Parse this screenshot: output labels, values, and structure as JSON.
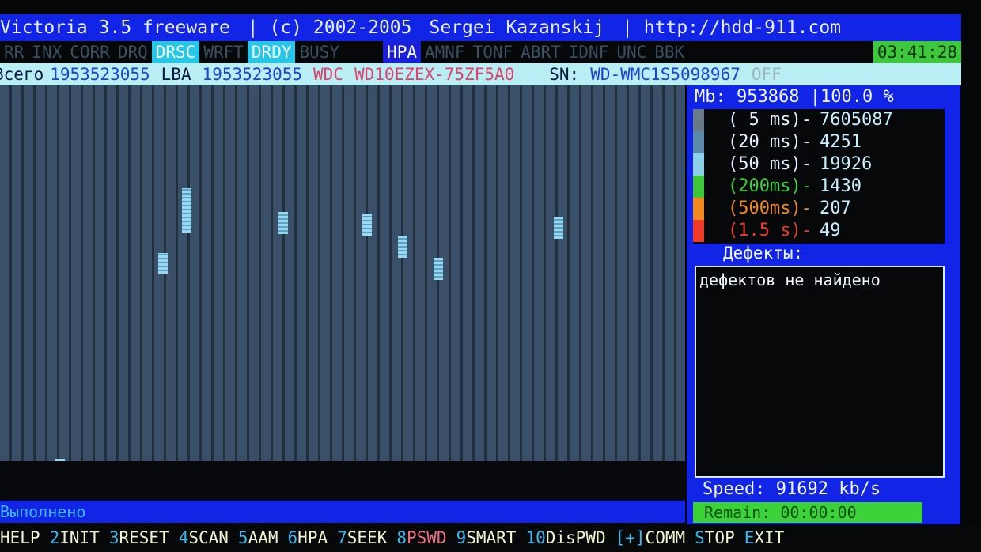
{
  "title": {
    "app": "Victoria 3.5 freeware",
    "copyright": "|  (c) 2002-2005",
    "author": "Sergei Kazanskij",
    "url": "| http://hdd-911.com"
  },
  "flags": {
    "items": [
      {
        "label": "RR",
        "on": false
      },
      {
        "label": "INX",
        "on": false
      },
      {
        "label": "CORR",
        "on": false
      },
      {
        "label": "DRQ",
        "on": false
      },
      {
        "label": "DRSC",
        "on": true
      },
      {
        "label": "WRFT",
        "on": false
      },
      {
        "label": "DRDY",
        "on": true
      },
      {
        "label": "BUSY",
        "on": false
      }
    ],
    "hpa": "HPA",
    "errors": [
      "AMNF",
      "TONF",
      "ABRT",
      "IDNF",
      "UNC",
      "BBK"
    ],
    "clock": "03:41:28"
  },
  "info": {
    "total_label": "Всего",
    "total": "1953523055",
    "lba_label": "LBA",
    "lba": "1953523055",
    "vendor": "WDC",
    "model": "WD10EZEX-75ZF5A0",
    "sn_label": "SN:",
    "sn": "WD-WMC1S5098967",
    "state": "OFF"
  },
  "panel": {
    "mb_label": "Mb:",
    "mb": "953868",
    "percent": "|100.0 %",
    "timings": [
      {
        "label": "( 5 ms)-",
        "count": "7605087",
        "color": "#6a7a88"
      },
      {
        "label": "(20 ms)-",
        "count": "4251",
        "color": "#5a8aa8"
      },
      {
        "label": "(50 ms)-",
        "count": "19926",
        "color": "#8ad0e8"
      },
      {
        "label": "(200ms)-",
        "count": "1430",
        "color": "#3cc83a"
      },
      {
        "label": "(500ms)-",
        "count": "207",
        "color": "#f08a20"
      },
      {
        "label": "(1.5 s)-",
        "count": "49",
        "color": "#f03a2a"
      }
    ],
    "defects_header": "Дефекты:",
    "defects_text": "дефектов не найдено",
    "speed_label": "Speed:",
    "speed": "91692 kb/s",
    "remain_label": "Remain:",
    "remain": "00:00:00"
  },
  "status": "Выполнено",
  "keys": [
    {
      "n": "1",
      "l": "HELP"
    },
    {
      "n": "2",
      "l": "INIT"
    },
    {
      "n": "3",
      "l": "RESET"
    },
    {
      "n": "4",
      "l": "SCAN"
    },
    {
      "n": "5",
      "l": "AAM"
    },
    {
      "n": "6",
      "l": "HPA"
    },
    {
      "n": "7",
      "l": "SEEK"
    },
    {
      "n": "8",
      "l": "PSWD"
    },
    {
      "n": "9",
      "l": "SMART"
    },
    {
      "n": "10",
      "l": "DisPWD"
    },
    {
      "n": "[+]",
      "l": "COMM"
    },
    {
      "n": "S",
      "l": "TOP"
    },
    {
      "n": "E",
      "l": "XIT"
    }
  ]
}
